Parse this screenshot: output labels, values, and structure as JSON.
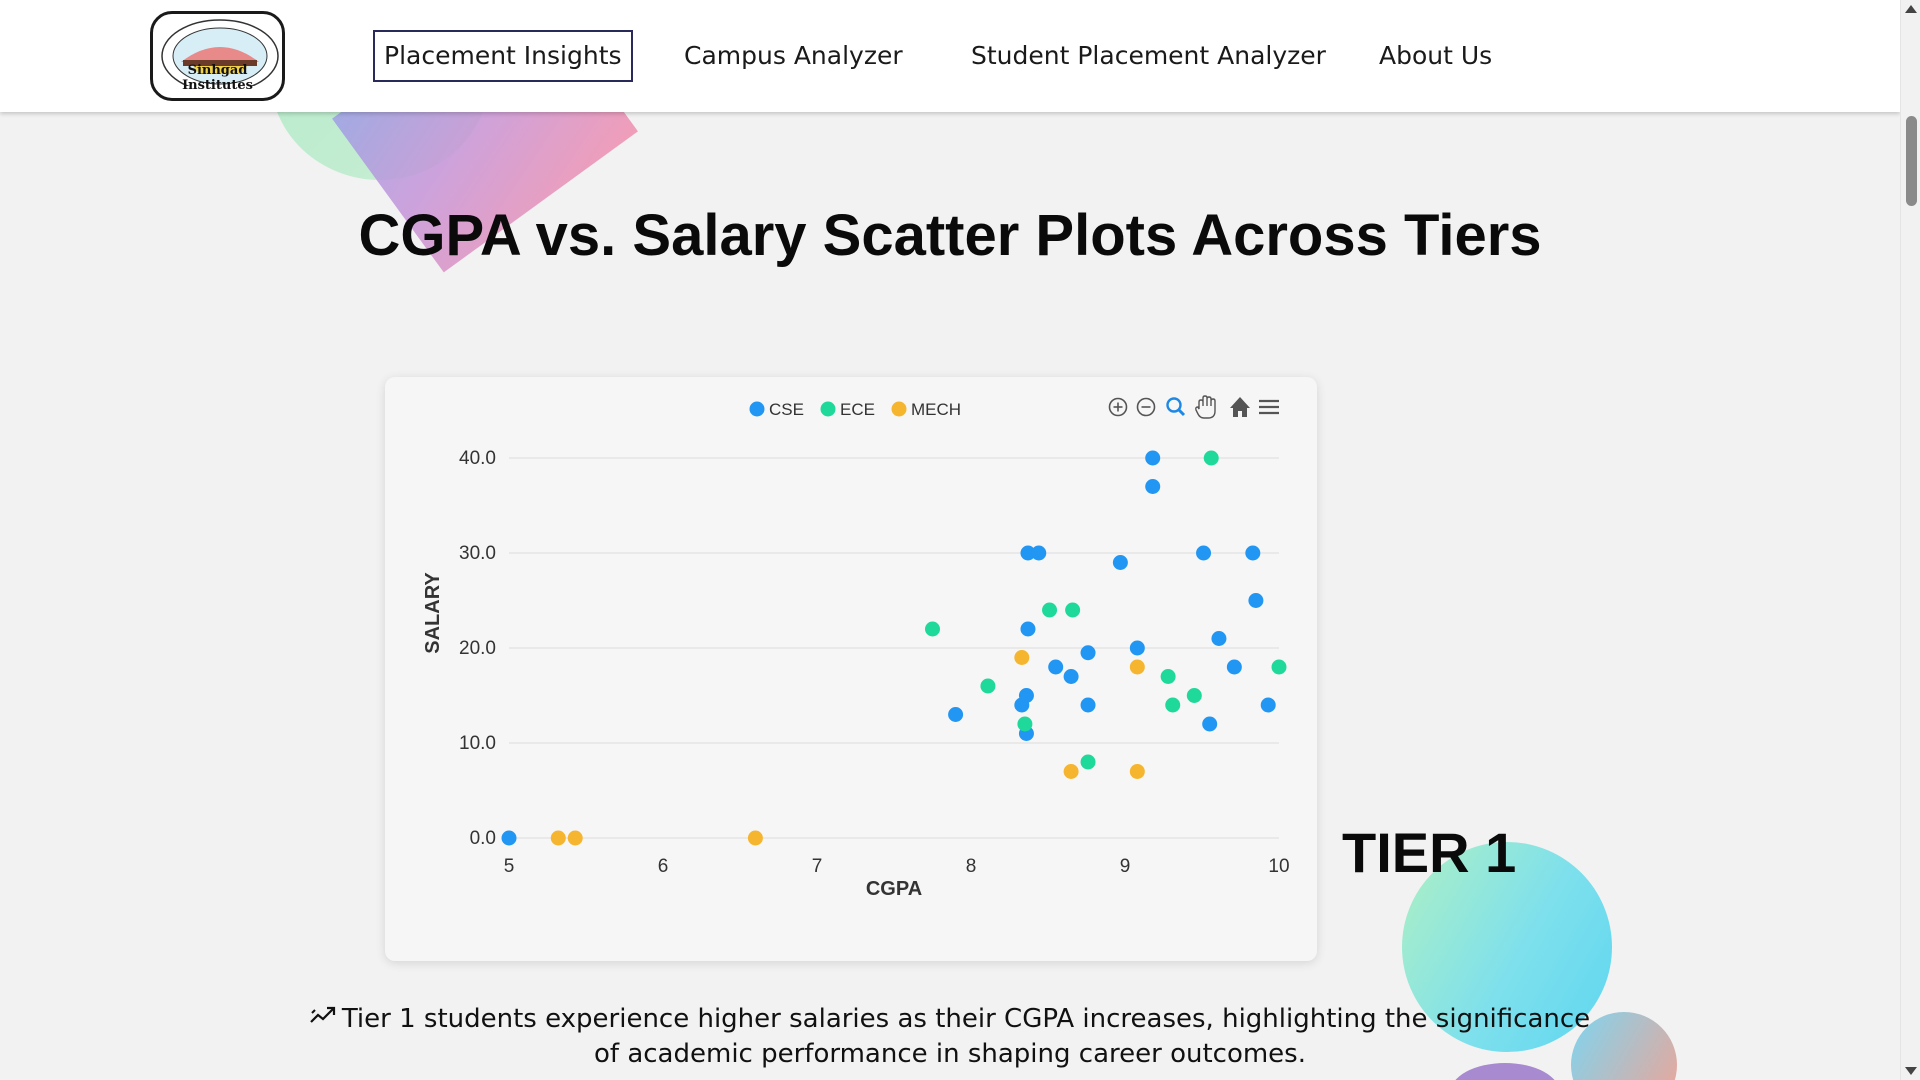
{
  "nav": {
    "logo_text": "Sinhgad Institutes",
    "items": [
      {
        "label": "Placement Insights",
        "active": true
      },
      {
        "label": "Campus Analyzer",
        "active": false
      },
      {
        "label": "Student Placement Analyzer",
        "active": false
      },
      {
        "label": "About Us",
        "active": false
      }
    ]
  },
  "page_title": "CGPA vs. Salary Scatter Plots Across Tiers",
  "tier_label": "TIER 1",
  "insight_text": "Tier 1 students experience higher salaries as their CGPA increases, highlighting the significance of academic performance in shaping career outcomes.",
  "insight_icon": "trend-line-icon",
  "toolbar_icons": [
    "zoom-in-icon",
    "zoom-out-icon",
    "magnifier-icon",
    "pan-hand-icon",
    "home-icon",
    "menu-icon"
  ],
  "chart_data": {
    "type": "scatter",
    "xlabel": "CGPA",
    "ylabel": "SALARY",
    "xlim": [
      5,
      10
    ],
    "ylim": [
      0,
      40
    ],
    "x_ticks": [
      "5",
      "6",
      "7",
      "8",
      "9",
      "10"
    ],
    "y_ticks": [
      "0.0",
      "10.0",
      "20.0",
      "30.0",
      "40.0"
    ],
    "grid": "horizontal",
    "legend_position": "top",
    "series": [
      {
        "name": "CSE",
        "color": "#2196f3",
        "points": [
          [
            5.0,
            0
          ],
          [
            7.9,
            13
          ],
          [
            8.33,
            14
          ],
          [
            8.36,
            15
          ],
          [
            8.36,
            11
          ],
          [
            8.37,
            22
          ],
          [
            8.37,
            30
          ],
          [
            8.44,
            30
          ],
          [
            8.55,
            18
          ],
          [
            8.65,
            17
          ],
          [
            8.76,
            19.5
          ],
          [
            8.76,
            14
          ],
          [
            8.97,
            29
          ],
          [
            9.08,
            20
          ],
          [
            9.18,
            40
          ],
          [
            9.18,
            37
          ],
          [
            9.51,
            30
          ],
          [
            9.55,
            12
          ],
          [
            9.61,
            21
          ],
          [
            9.71,
            18
          ],
          [
            9.83,
            30
          ],
          [
            9.85,
            25
          ],
          [
            9.93,
            14
          ]
        ]
      },
      {
        "name": "ECE",
        "color": "#1fd99a",
        "points": [
          [
            7.75,
            22
          ],
          [
            8.11,
            16
          ],
          [
            8.35,
            12
          ],
          [
            8.51,
            24
          ],
          [
            8.66,
            24
          ],
          [
            8.76,
            8
          ],
          [
            9.28,
            17
          ],
          [
            9.31,
            14
          ],
          [
            9.45,
            15
          ],
          [
            9.56,
            40
          ],
          [
            10.0,
            18
          ]
        ]
      },
      {
        "name": "MECH",
        "color": "#f5b52e",
        "points": [
          [
            5.32,
            0
          ],
          [
            5.43,
            0
          ],
          [
            6.6,
            0
          ],
          [
            8.33,
            19
          ],
          [
            8.65,
            7
          ],
          [
            9.08,
            18
          ],
          [
            9.08,
            7
          ]
        ]
      }
    ]
  }
}
